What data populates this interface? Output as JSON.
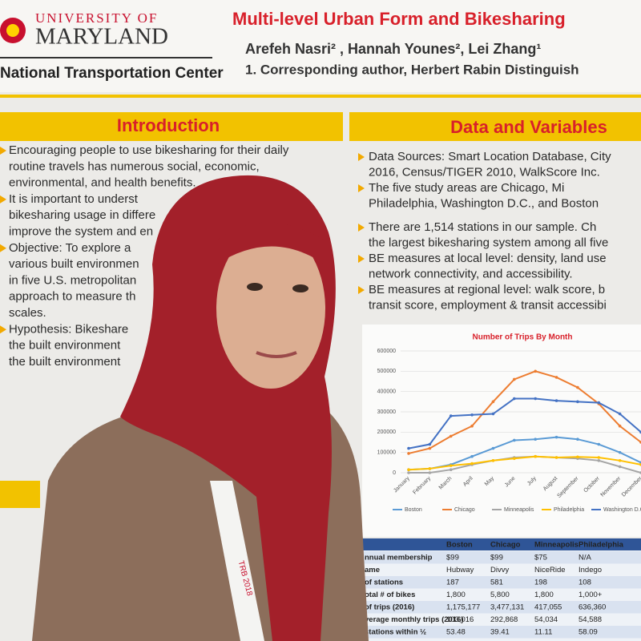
{
  "header": {
    "university": "UNIVERSITY OF",
    "maryland": "MARYLAND",
    "center": "National Transportation Center",
    "title": "Multi-level Urban Form and Bikesharing",
    "authors": "Arefeh Nasri² , Hannah Younes², Lei Zhang¹",
    "affiliation": "1. Corresponding author, Herbert Rabin Distinguish"
  },
  "intro": {
    "title": "Introduction",
    "lines": [
      "Encouraging people to use bikesharing for their daily",
      "routine travels has numerous social, economic,",
      "environmental, and health benefits.",
      "It is important to underst",
      "bikesharing usage in differe",
      "improve the system and en",
      "Objective: To explore a",
      "various built environmen",
      "in five U.S. metropolitan",
      "approach to measure th",
      "scales.",
      "Hypothesis: Bikeshare",
      "the built environment",
      "the built environment"
    ]
  },
  "data_section": {
    "title": "Data and Variables",
    "lines": [
      "Data Sources: Smart Location Database, City",
      "2016, Census/TIGER 2010, WalkScore Inc.",
      "The five study areas are Chicago, Mi",
      "Philadelphia, Washington D.C., and Boston",
      "There are 1,514 stations in our sample. Ch",
      "the largest bikesharing system among all five",
      "BE measures at local level: density, land use",
      "network connectivity, and accessibility.",
      "BE measures at regional level: walk score, b",
      "transit score, employment & transit accessibi"
    ]
  },
  "badge": "TRB 2018",
  "chart_data": {
    "type": "line",
    "title": "Number of Trips By Month",
    "categories": [
      "January",
      "February",
      "March",
      "April",
      "May",
      "June",
      "July",
      "August",
      "September",
      "October",
      "November",
      "December"
    ],
    "series": [
      {
        "name": "Boston",
        "color": "#5b9bd5",
        "values": [
          15000,
          20000,
          40000,
          80000,
          120000,
          160000,
          165000,
          175000,
          165000,
          140000,
          100000,
          50000
        ]
      },
      {
        "name": "Chicago",
        "color": "#ed7d31",
        "values": [
          95000,
          120000,
          180000,
          230000,
          350000,
          460000,
          500000,
          470000,
          420000,
          340000,
          230000,
          150000
        ]
      },
      {
        "name": "Minneapolis",
        "color": "#a5a5a5",
        "values": [
          0,
          0,
          15000,
          40000,
          60000,
          75000,
          80000,
          75000,
          70000,
          60000,
          30000,
          0
        ]
      },
      {
        "name": "Philadelphia",
        "color": "#ffc000",
        "values": [
          15000,
          20000,
          35000,
          45000,
          60000,
          70000,
          80000,
          75000,
          78000,
          75000,
          60000,
          40000
        ]
      },
      {
        "name": "Washington D.C.",
        "color": "#4472c4",
        "values": [
          120000,
          140000,
          280000,
          285000,
          290000,
          365000,
          365000,
          355000,
          350000,
          345000,
          290000,
          200000
        ]
      }
    ],
    "ylim": [
      0,
      600000
    ],
    "yticks": [
      0,
      100000,
      200000,
      300000,
      400000,
      500000,
      600000
    ],
    "grid": true,
    "legend": "bottom"
  },
  "table": {
    "columns": [
      "Boston",
      "Chicago",
      "Minneapolis",
      "Philadelphia"
    ],
    "rows": [
      [
        "nnual membership",
        "$99",
        "$99",
        "$75",
        "N/A"
      ],
      [
        "ame",
        "Hubway",
        "Divvy",
        "NiceRide",
        "Indego"
      ],
      [
        "of stations",
        "187",
        "581",
        "198",
        "108"
      ],
      [
        "otal # of bikes",
        "1,800",
        "5,800",
        "1,800",
        "1,000+"
      ],
      [
        "of trips (2016)",
        "1,175,177",
        "3,477,131",
        "417,055",
        "636,360"
      ],
      [
        "verage monthly trips (2016)",
        "103,016",
        "292,868",
        "54,034",
        "54,588"
      ],
      [
        "stations within ½",
        "53.48",
        "39.41",
        "11.11",
        "58.09"
      ]
    ]
  }
}
